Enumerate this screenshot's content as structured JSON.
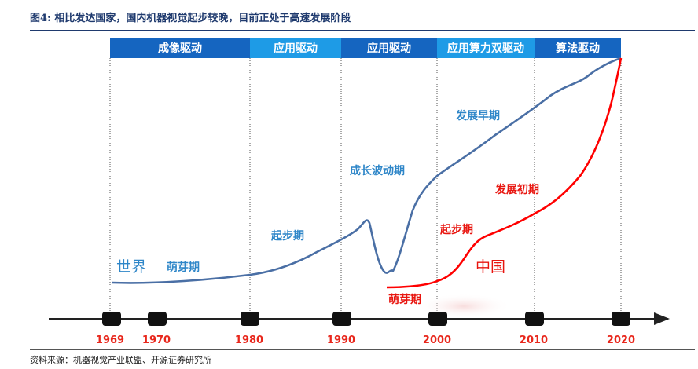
{
  "title": "图4:  相比发达国家，国内机器视觉起步较晚，目前正处于高速发展阶段",
  "source": "资料来源：机器视觉产业联盟、开源证券研究所",
  "eras": [
    {
      "label": "成像驱动",
      "color": "#1565c0"
    },
    {
      "label": "应用驱动",
      "color": "#1e9be6"
    },
    {
      "label": "应用驱动",
      "color": "#1565c0"
    },
    {
      "label": "应用算力双驱动",
      "color": "#1e9be6"
    },
    {
      "label": "算法驱动",
      "color": "#1565c0"
    }
  ],
  "years": [
    "1969",
    "1970",
    "1980",
    "1990",
    "2000",
    "2010",
    "2020"
  ],
  "world": {
    "name": "世界",
    "stages": [
      "萌芽期",
      "起步期",
      "成长波动期",
      "发展早期"
    ],
    "color": "#4a6fa5"
  },
  "china": {
    "name": "中国",
    "stages": [
      "萌芽期",
      "起步期",
      "发展初期"
    ],
    "color": "#ff0000"
  },
  "colors": {
    "axis": "#222222",
    "marker": "#111111",
    "year": "#e8271c",
    "guide": "#555555"
  }
}
